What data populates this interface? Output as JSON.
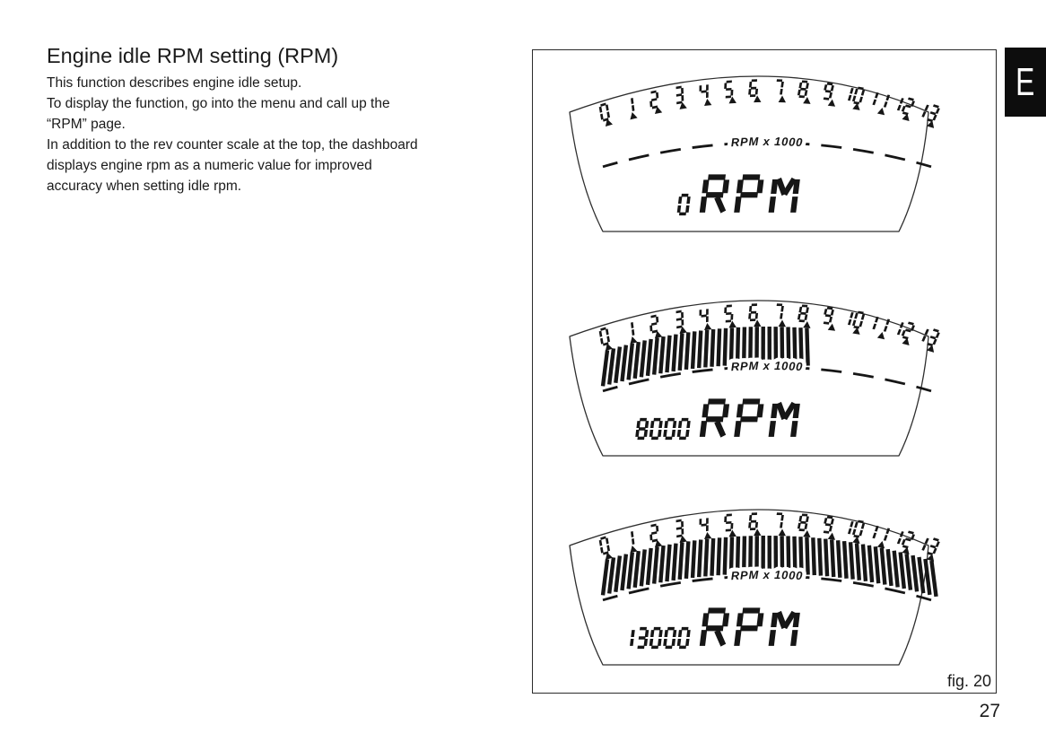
{
  "page": {
    "title": "Engine idle RPM setting (RPM)",
    "paragraphs": [
      "This function describes engine idle setup.",
      "To display the function, go into the menu and call up the\n“RPM” page.",
      "In addition to the rev counter scale at the top, the dashboard\ndisplays engine rpm as a numeric value for improved\naccuracy when setting idle rpm."
    ],
    "section_tab_label": "E",
    "page_number": "27"
  },
  "figure": {
    "caption": "fig. 20",
    "scale_label": "RPM x 1000",
    "unit_label": "RPM",
    "scale_min": 0,
    "scale_max": 13,
    "scale_numbers": [
      "0",
      "1",
      "2",
      "3",
      "4",
      "5",
      "6",
      "7",
      "8",
      "9",
      "10",
      "11",
      "12",
      "13"
    ],
    "gauges": [
      {
        "name": "rpm-display-idle",
        "value_display": "0",
        "rpm": 0,
        "bar_fill_thousands": 0
      },
      {
        "name": "rpm-display-mid",
        "value_display": "8000",
        "rpm": 8000,
        "bar_fill_thousands": 8
      },
      {
        "name": "rpm-display-max",
        "value_display": "13000",
        "rpm": 13000,
        "bar_fill_thousands": 13
      }
    ],
    "colors": {
      "ink": "#161616",
      "paper": "#ffffff",
      "tab_background": "#0d0d0d"
    }
  }
}
